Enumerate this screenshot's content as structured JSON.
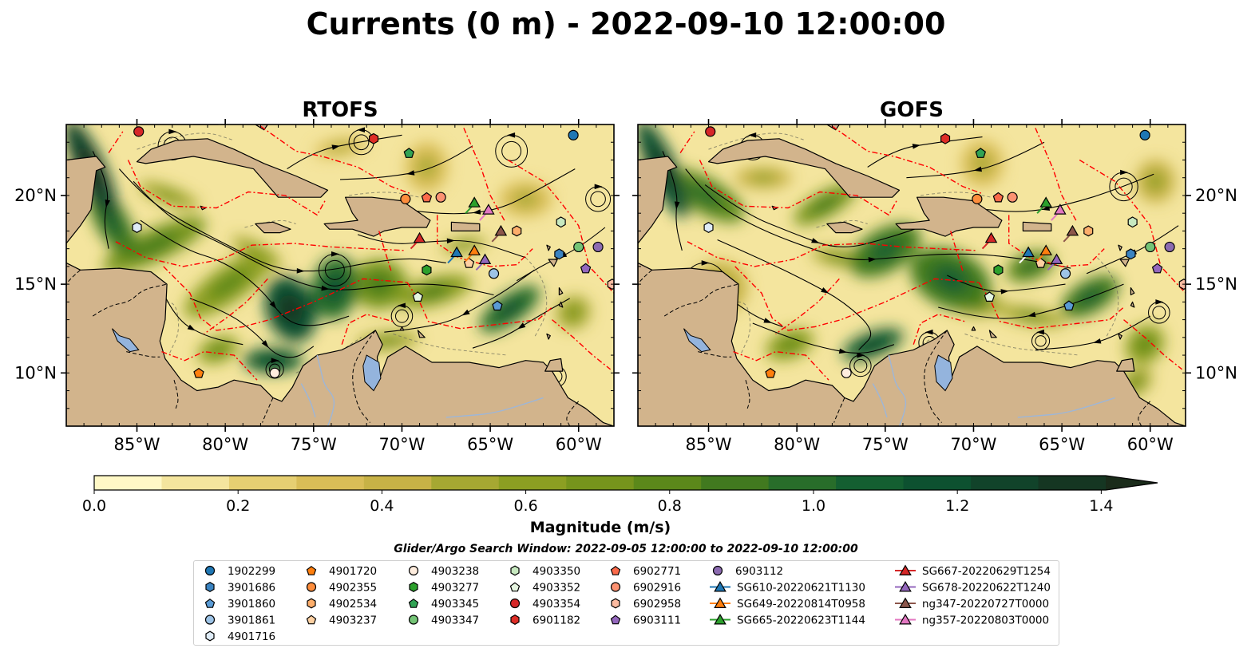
{
  "title": "Currents (0 m) - 2022-09-10 12:00:00",
  "panels": [
    {
      "name": "RTOFS",
      "variant": 0
    },
    {
      "name": "GOFS",
      "variant": 1
    }
  ],
  "axes": {
    "x_ticks": [
      "85°W",
      "80°W",
      "75°W",
      "70°W",
      "65°W",
      "60°W"
    ],
    "x_tick_values": [
      -85,
      -80,
      -75,
      -70,
      -65,
      -60
    ],
    "y_ticks": [
      "20°N",
      "15°N",
      "10°N"
    ],
    "y_tick_values": [
      20,
      15,
      10
    ],
    "xlim": [
      -89,
      -58
    ],
    "ylim": [
      7,
      24
    ],
    "grid": false
  },
  "colorbar": {
    "label": "Magnitude (m/s)",
    "ticks": [
      "0.0",
      "0.2",
      "0.4",
      "0.6",
      "0.8",
      "1.0",
      "1.2",
      "1.4"
    ],
    "tick_values": [
      0,
      0.2,
      0.4,
      0.6,
      0.8,
      1.0,
      1.2,
      1.4
    ],
    "range": [
      0,
      1.5
    ],
    "extend": "max",
    "colors": [
      "#fff8c6",
      "#f4e59e",
      "#e6cf72",
      "#d9bd57",
      "#c7b246",
      "#a6a832",
      "#8c9f22",
      "#76941c",
      "#5b881a",
      "#41791f",
      "#286d2a",
      "#145f31",
      "#0d5130",
      "#11432a",
      "#153622",
      "#1a2b1a"
    ]
  },
  "subtitle": "Glider/Argo Search Window: 2022-09-05 12:00:00 to 2022-09-10 12:00:00",
  "colors": {
    "land": "#d2b48c",
    "lakes": "#94b4dd",
    "eez_boundary": "#ff0000",
    "streamlines": "#000000"
  },
  "legend": [
    {
      "label": "1902299",
      "marker": "circle",
      "color": "#1f77b4",
      "lon": -60.3,
      "lat": 23.4
    },
    {
      "label": "3901686",
      "marker": "hexagon",
      "color": "#3a83c1",
      "lon": -61.1,
      "lat": 16.7
    },
    {
      "label": "3901860",
      "marker": "pentagon",
      "color": "#5a9bd5",
      "lon": -64.6,
      "lat": 13.8
    },
    {
      "label": "3901861",
      "marker": "circle",
      "color": "#9dc3e6",
      "lon": -64.8,
      "lat": 15.6
    },
    {
      "label": "4901716",
      "marker": "hexagon",
      "color": "#deebf7",
      "lon": -85.0,
      "lat": 18.2
    },
    {
      "label": "4901720",
      "marker": "pentagon",
      "color": "#ff7f0e",
      "lon": -81.5,
      "lat": 10.0
    },
    {
      "label": "4902355",
      "marker": "circle",
      "color": "#fd8d3c",
      "lon": -69.8,
      "lat": 19.8
    },
    {
      "label": "4902534",
      "marker": "hexagon",
      "color": "#fdae6b",
      "lon": -63.5,
      "lat": 18.0
    },
    {
      "label": "4903237",
      "marker": "pentagon",
      "color": "#fdd0a2",
      "lon": -66.2,
      "lat": 16.2
    },
    {
      "label": "4903238",
      "marker": "circle",
      "color": "#feedde",
      "lon": -77.2,
      "lat": 10.0
    },
    {
      "label": "4903277",
      "marker": "hexagon",
      "color": "#2ca02c",
      "lon": -68.6,
      "lat": 15.8
    },
    {
      "label": "4903345",
      "marker": "pentagon",
      "color": "#31a354",
      "lon": -69.6,
      "lat": 22.4
    },
    {
      "label": "4903347",
      "marker": "circle",
      "color": "#74c476",
      "lon": -60.0,
      "lat": 17.1
    },
    {
      "label": "4903350",
      "marker": "hexagon",
      "color": "#c7e9c0",
      "lon": -61.0,
      "lat": 18.5
    },
    {
      "label": "4903352",
      "marker": "pentagon",
      "color": "#e5f5e0",
      "lon": -69.1,
      "lat": 14.3
    },
    {
      "label": "4903354",
      "marker": "circle",
      "color": "#d62728",
      "lon": -84.9,
      "lat": 23.6
    },
    {
      "label": "6901182",
      "marker": "hexagon",
      "color": "#de2d26",
      "lon": -71.6,
      "lat": 23.2
    },
    {
      "label": "6902771",
      "marker": "pentagon",
      "color": "#fb6a4a",
      "lon": -68.6,
      "lat": 19.9
    },
    {
      "label": "6902916",
      "marker": "circle",
      "color": "#fc9272",
      "lon": -67.8,
      "lat": 19.9
    },
    {
      "label": "6902958",
      "marker": "hexagon",
      "color": "#fcbba1",
      "lon": -58.1,
      "lat": 15.0
    },
    {
      "label": "6903111",
      "marker": "pentagon",
      "color": "#9467bd",
      "lon": -59.6,
      "lat": 15.9
    },
    {
      "label": "6903112",
      "marker": "circle",
      "color": "#8c6bb1",
      "lon": -58.9,
      "lat": 17.1
    },
    {
      "label": "SG610-20220621T1130",
      "marker": "triangle",
      "color": "#1f77b4",
      "lon": -66.9,
      "lat": 16.8
    },
    {
      "label": "SG649-20220814T0958",
      "marker": "triangle",
      "color": "#ff7f0e",
      "lon": -65.9,
      "lat": 16.9
    },
    {
      "label": "SG665-20220623T1144",
      "marker": "triangle",
      "color": "#2ca02c",
      "lon": -65.9,
      "lat": 19.6
    },
    {
      "label": "SG667-20220629T1254",
      "marker": "triangle",
      "color": "#d62728",
      "lon": -69.0,
      "lat": 17.6
    },
    {
      "label": "SG678-20220622T1240",
      "marker": "triangle",
      "color": "#9467bd",
      "lon": -65.3,
      "lat": 16.4
    },
    {
      "label": "ng347-20220727T0000",
      "marker": "triangle",
      "color": "#8c564b",
      "lon": -64.4,
      "lat": 18.0
    },
    {
      "label": "ng357-20220803T0000",
      "marker": "triangle",
      "color": "#e377c2",
      "lon": -65.1,
      "lat": 19.2
    }
  ]
}
